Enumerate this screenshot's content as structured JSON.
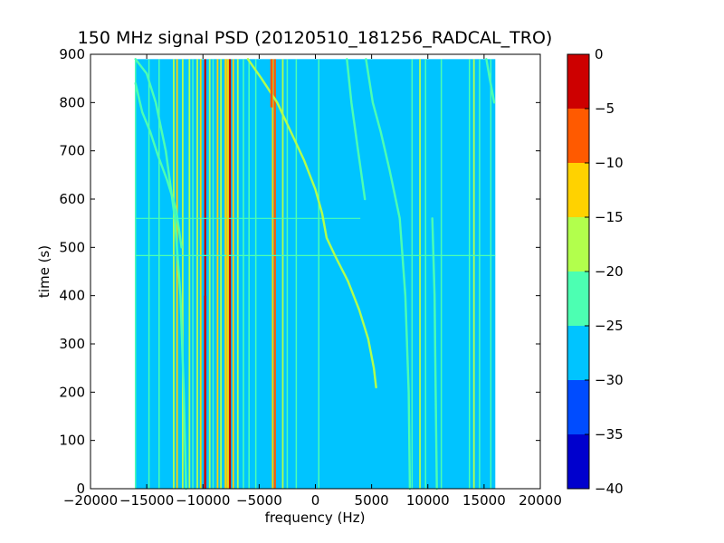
{
  "chart_data": {
    "type": "heatmap",
    "title": "150 MHz signal PSD (20120510_181256_RADCAL_TRO)",
    "xlabel": "frequency (Hz)",
    "ylabel": "time (s)",
    "xlim": [
      -20000,
      20000
    ],
    "ylim": [
      0,
      900
    ],
    "x_ticks": [
      -20000,
      -15000,
      -10000,
      -5000,
      0,
      5000,
      10000,
      15000,
      20000
    ],
    "x_tick_labels": [
      "−20000",
      "−15000",
      "−10000",
      "−5000",
      "0",
      "5000",
      "10000",
      "15000",
      "20000"
    ],
    "y_ticks": [
      0,
      100,
      200,
      300,
      400,
      500,
      600,
      700,
      800,
      900
    ],
    "y_tick_labels": [
      "0",
      "100",
      "200",
      "300",
      "400",
      "500",
      "600",
      "700",
      "800",
      "900"
    ],
    "data_extent": {
      "freq_min": -16000,
      "freq_max": 16000,
      "time_min": 0,
      "time_max": 890
    },
    "background_level": -27.5,
    "colorbar": {
      "levels": [
        -40,
        -35,
        -30,
        -25,
        -20,
        -15,
        -10,
        -5,
        0
      ],
      "tick_labels": [
        "−40",
        "−35",
        "−30",
        "−25",
        "−20",
        "−15",
        "−10",
        "−5",
        "0"
      ],
      "colors": [
        "#0000cd",
        "#004cff",
        "#00c4ff",
        "#4cffb2",
        "#b2ff4c",
        "#ffd200",
        "#ff5a00",
        "#cd0000"
      ]
    },
    "vertical_lines": [
      {
        "freq": -16000,
        "level": -22.5
      },
      {
        "freq": -14800,
        "level": -22.5
      },
      {
        "freq": -13900,
        "level": -22.5
      },
      {
        "freq": -12600,
        "level": -17.5
      },
      {
        "freq": -12300,
        "level": -12.5
      },
      {
        "freq": -11800,
        "level": -17.5
      },
      {
        "freq": -11200,
        "level": -17.5
      },
      {
        "freq": -10900,
        "level": -22.5
      },
      {
        "freq": -10500,
        "level": -17.5
      },
      {
        "freq": -10200,
        "level": -12.5
      },
      {
        "freq": -9800,
        "level": -2.5
      },
      {
        "freq": -9400,
        "level": -17.5
      },
      {
        "freq": -9100,
        "level": -22.5
      },
      {
        "freq": -8700,
        "level": -12.5
      },
      {
        "freq": -8400,
        "level": -17.5
      },
      {
        "freq": -8000,
        "level": -12.5
      },
      {
        "freq": -7600,
        "level": -2.5
      },
      {
        "freq": -7300,
        "level": -12.5
      },
      {
        "freq": -6900,
        "level": -17.5
      },
      {
        "freq": -6400,
        "level": -22.5
      },
      {
        "freq": -5900,
        "level": -22.5
      },
      {
        "freq": -5300,
        "level": -22.5
      },
      {
        "freq": -3800,
        "level": -12.5
      },
      {
        "freq": -3600,
        "level": -7.5
      },
      {
        "freq": -2900,
        "level": -17.5
      },
      {
        "freq": -2500,
        "level": -22.5
      },
      {
        "freq": -1700,
        "level": -22.5
      },
      {
        "freq": 300,
        "level": -22.5
      },
      {
        "freq": 8600,
        "level": -22.5
      },
      {
        "freq": 9300,
        "level": -17.5
      },
      {
        "freq": 9800,
        "level": -22.5
      },
      {
        "freq": 11200,
        "level": -22.5
      },
      {
        "freq": 13700,
        "level": -22.5
      },
      {
        "freq": 14100,
        "level": -17.5
      },
      {
        "freq": 14600,
        "level": -22.5
      },
      {
        "freq": 15600,
        "level": -22.5
      }
    ],
    "vertical_segments": [
      {
        "freq": -9800,
        "t0": 0,
        "t1": 400,
        "level": -2.5
      },
      {
        "freq": -3900,
        "t0": 790,
        "t1": 890,
        "level": -7.5
      },
      {
        "freq": -7800,
        "t0": 0,
        "t1": 890,
        "level": -12.5
      }
    ],
    "drift_tracks": [
      {
        "level": -17.5,
        "points": [
          [
            5400,
            210
          ],
          [
            5200,
            250
          ],
          [
            4700,
            310
          ],
          [
            3900,
            370
          ],
          [
            2900,
            430
          ],
          [
            1800,
            480
          ],
          [
            1000,
            520
          ],
          [
            600,
            570
          ],
          [
            0,
            620
          ],
          [
            -1000,
            680
          ],
          [
            -2200,
            740
          ],
          [
            -3400,
            800
          ],
          [
            -4800,
            850
          ],
          [
            -6000,
            890
          ]
        ]
      },
      {
        "level": -22.5,
        "points": [
          [
            4400,
            600
          ],
          [
            3800,
            700
          ],
          [
            3200,
            800
          ],
          [
            2800,
            890
          ]
        ]
      },
      {
        "level": -22.5,
        "points": [
          [
            8400,
            0
          ],
          [
            8300,
            200
          ],
          [
            8000,
            400
          ],
          [
            7500,
            560
          ],
          [
            6600,
            660
          ],
          [
            5800,
            740
          ],
          [
            5100,
            800
          ],
          [
            4500,
            890
          ]
        ]
      },
      {
        "level": -22.5,
        "points": [
          [
            -11500,
            0
          ],
          [
            -11700,
            200
          ],
          [
            -12000,
            400
          ],
          [
            -12500,
            560
          ],
          [
            -13300,
            700
          ],
          [
            -14200,
            800
          ],
          [
            -15000,
            860
          ],
          [
            -16000,
            890
          ]
        ]
      },
      {
        "level": -22.5,
        "points": [
          [
            -16000,
            840
          ],
          [
            -15400,
            780
          ],
          [
            -14700,
            740
          ],
          [
            -14000,
            690
          ],
          [
            -13200,
            640
          ],
          [
            -12400,
            580
          ],
          [
            -11900,
            500
          ]
        ]
      },
      {
        "level": -22.5,
        "points": [
          [
            10800,
            0
          ],
          [
            10700,
            200
          ],
          [
            10600,
            400
          ],
          [
            10400,
            560
          ]
        ]
      },
      {
        "level": -22.5,
        "points": [
          [
            15900,
            800
          ],
          [
            15500,
            850
          ],
          [
            15200,
            890
          ]
        ]
      }
    ],
    "horizontal_lines": [
      {
        "time": 483,
        "f0": -16000,
        "f1": 16000,
        "level": -22.5
      },
      {
        "time": 560,
        "f0": -16000,
        "f1": 4000,
        "level": -22.5
      }
    ]
  }
}
